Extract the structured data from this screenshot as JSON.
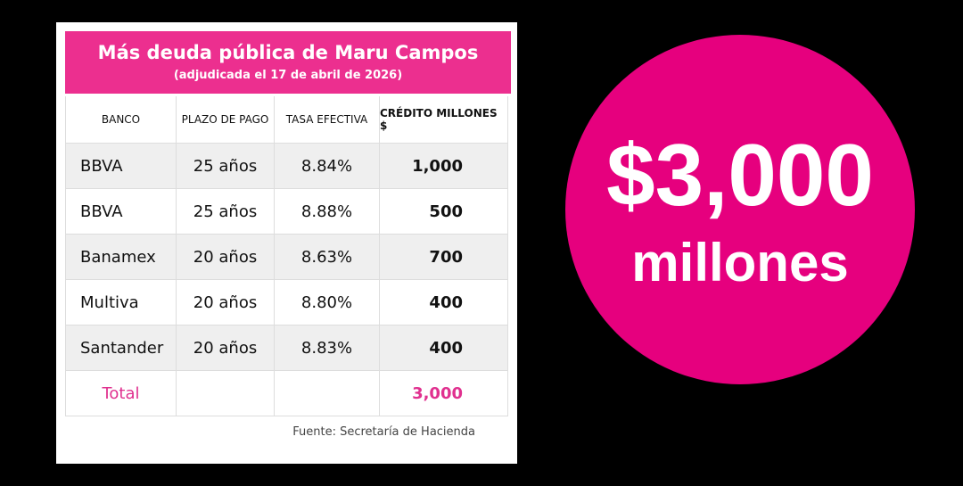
{
  "header": {
    "title": "Más deuda pública de Maru Campos",
    "subtitle": "(adjudicada el 17 de abril de 2026)"
  },
  "table": {
    "columns": [
      "BANCO",
      "PLAZO DE PAGO",
      "TASA EFECTIVA",
      "CRÉDITO MILLONES $"
    ],
    "rows": [
      [
        "BBVA",
        "25 años",
        "8.84%",
        "1,000"
      ],
      [
        "BBVA",
        "25 años",
        "8.88%",
        "500"
      ],
      [
        "Banamex",
        "20 años",
        "8.63%",
        "700"
      ],
      [
        "Multiva",
        "20 años",
        "8.80%",
        "400"
      ],
      [
        "Santander",
        "20 años",
        "8.83%",
        "400"
      ]
    ],
    "total": {
      "label": "Total",
      "amount": "3,000"
    }
  },
  "source": "Fuente: Secretaría de Hacienda",
  "badge": {
    "amount": "$3,000",
    "unit": "millones"
  }
}
